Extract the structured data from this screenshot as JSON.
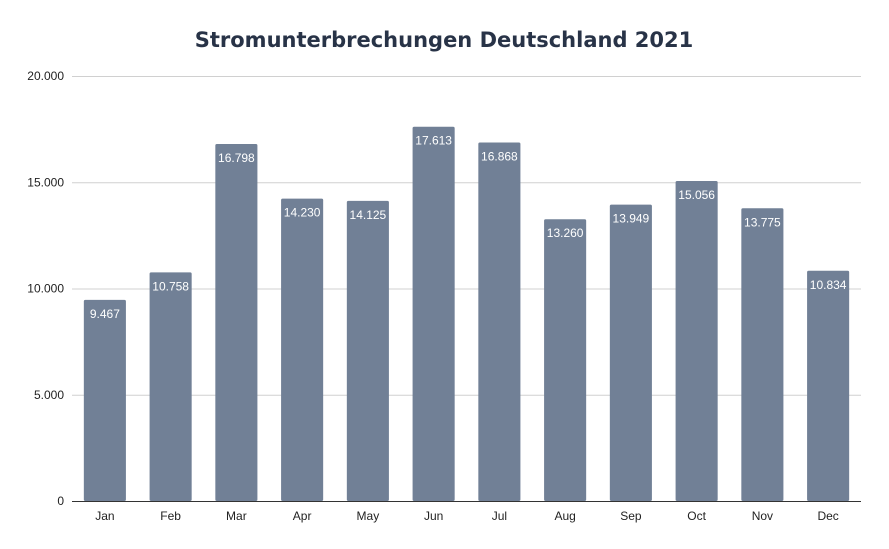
{
  "chart_data": {
    "type": "bar",
    "title": "Stromunterbrechungen Deutschland 2021",
    "xlabel": "",
    "ylabel": "",
    "categories": [
      "Jan",
      "Feb",
      "Mar",
      "Apr",
      "May",
      "Jun",
      "Jul",
      "Aug",
      "Sep",
      "Oct",
      "Nov",
      "Dec"
    ],
    "values": [
      9467,
      10758,
      16798,
      14230,
      14125,
      17613,
      16868,
      13260,
      13949,
      15056,
      13775,
      10834
    ],
    "value_labels": [
      "9.467",
      "10.758",
      "16.798",
      "14.230",
      "14.125",
      "17.613",
      "16.868",
      "13.260",
      "13.949",
      "15.056",
      "13.775",
      "10.834"
    ],
    "ylim": [
      0,
      20000
    ],
    "yticks": [
      0,
      5000,
      10000,
      15000,
      20000
    ],
    "ytick_labels": [
      "0",
      "5.000",
      "10.000",
      "15.000",
      "20.000"
    ],
    "grid": true,
    "legend": "none",
    "bar_color": "#718096"
  }
}
